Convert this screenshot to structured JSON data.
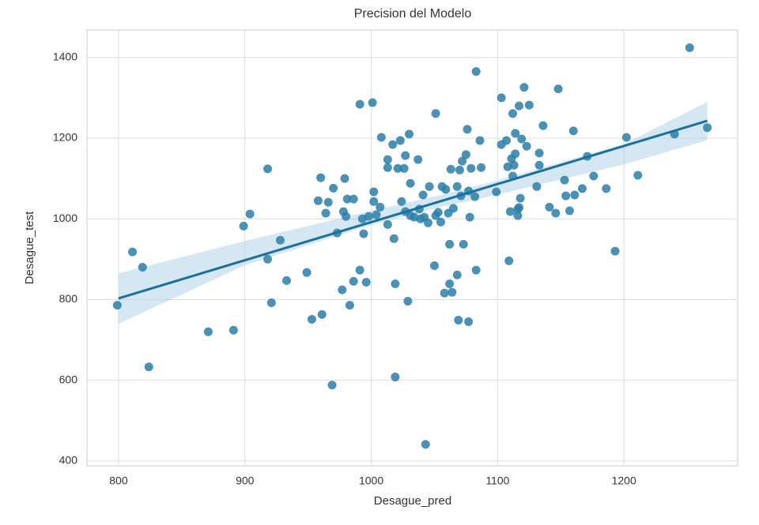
{
  "chart_data": {
    "type": "scatter",
    "title": "Precision del Modelo",
    "x_label": "Desague_pred",
    "y_label": "Desague_test",
    "xlim": [
      775,
      1290
    ],
    "ylim": [
      388,
      1468
    ],
    "xticks": [
      800,
      900,
      1000,
      1100,
      1200
    ],
    "yticks": [
      400,
      600,
      800,
      1000,
      1200,
      1400
    ],
    "grid": true,
    "color": "#2a7fa8",
    "x": [
      799,
      811,
      819,
      824,
      871,
      891,
      899,
      904,
      918,
      918,
      921,
      928,
      933,
      949,
      953,
      961,
      960,
      958,
      966,
      964,
      969,
      970,
      973,
      977,
      979,
      981,
      978,
      983,
      986,
      986,
      980,
      991,
      991,
      993,
      994,
      996,
      998,
      1001,
      1002,
      1002,
      1004,
      1007,
      1008,
      1013,
      1013,
      1017,
      1018,
      1013,
      1019,
      1019,
      1021,
      1023,
      1024,
      1026,
      1027,
      1027,
      1029,
      1030,
      1031,
      1031,
      1034,
      1037,
      1038,
      1039,
      1041,
      1042,
      1043,
      1045,
      1046,
      1050,
      1051,
      1051,
      1053,
      1055,
      1056,
      1058,
      1059,
      1061,
      1062,
      1062,
      1064,
      1063,
      1065,
      1068,
      1068,
      1069,
      1070,
      1071,
      1072,
      1073,
      1075,
      1076,
      1077,
      1077,
      1078,
      1079,
      1082,
      1083,
      1083,
      1086,
      1087,
      1099,
      1103,
      1103,
      1107,
      1108,
      1109,
      1110,
      1111,
      1112,
      1112,
      1113,
      1114,
      1114,
      1116,
      1116,
      1117,
      1117,
      1118,
      1119,
      1121,
      1123,
      1125,
      1131,
      1133,
      1133,
      1136,
      1141,
      1146,
      1148,
      1153,
      1154,
      1157,
      1160,
      1161,
      1167,
      1171,
      1176,
      1186,
      1193,
      1202,
      1211,
      1240,
      1252,
      1266
    ],
    "values": [
      786,
      918,
      880,
      633,
      720,
      724,
      982,
      1012,
      1124,
      900,
      792,
      947,
      847,
      867,
      751,
      763,
      1102,
      1045,
      1041,
      1014,
      588,
      1076,
      965,
      824,
      1100,
      1049,
      1018,
      786,
      1049,
      845,
      1006,
      873,
      1284,
      1000,
      963,
      843,
      1006,
      1288,
      1067,
      1043,
      1010,
      1029,
      1202,
      986,
      1147,
      1184,
      951,
      1127,
      839,
      608,
      1125,
      1194,
      1043,
      1125,
      1157,
      1018,
      796,
      1210,
      1088,
      1008,
      1004,
      1147,
      1024,
      1000,
      1059,
      1004,
      441,
      990,
      1080,
      884,
      1261,
      1008,
      1016,
      992,
      1080,
      816,
      1073,
      1014,
      937,
      839,
      818,
      1123,
      1026,
      861,
      1080,
      749,
      1121,
      1057,
      1143,
      937,
      1159,
      1222,
      745,
      1069,
      1004,
      1125,
      1055,
      873,
      1365,
      1194,
      1127,
      1067,
      1300,
      1184,
      1194,
      1129,
      896,
      1018,
      1149,
      1261,
      1106,
      1133,
      1212,
      1161,
      1008,
      1024,
      1280,
      1028,
      1051,
      1198,
      1326,
      1180,
      1282,
      1080,
      1133,
      1163,
      1231,
      1029,
      1014,
      1322,
      1096,
      1057,
      1020,
      1218,
      1059,
      1075,
      1155,
      1106,
      1075,
      920,
      1202,
      1108,
      1210,
      1424,
      1226
    ],
    "regression": {
      "color": "#1b6f9c",
      "x": [
        800,
        1266
      ],
      "y": [
        803,
        1243
      ]
    },
    "confidence_band": {
      "color": "#a9cfe6",
      "x": [
        800,
        900,
        1000,
        1050,
        1100,
        1200,
        1266
      ],
      "lower": [
        740,
        885,
        985,
        1025,
        1060,
        1135,
        1195
      ],
      "upper": [
        865,
        945,
        1020,
        1055,
        1095,
        1185,
        1290
      ]
    }
  }
}
